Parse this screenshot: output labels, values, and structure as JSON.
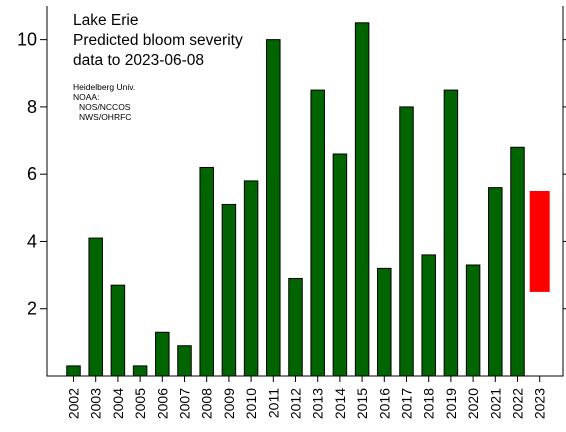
{
  "chart_data": {
    "type": "bar",
    "title_lines": [
      "Lake Erie",
      "Predicted bloom severity",
      "data to 2023-06-08"
    ],
    "credit_lines": [
      "Heidelberg Univ.",
      "NOAA:",
      "NOS/NCCOS",
      "NWS/OHRFC"
    ],
    "categories": [
      "2002",
      "2003",
      "2004",
      "2005",
      "2006",
      "2007",
      "2008",
      "2009",
      "2010",
      "2011",
      "2012",
      "2013",
      "2014",
      "2015",
      "2016",
      "2017",
      "2018",
      "2019",
      "2020",
      "2021",
      "2022",
      "2023"
    ],
    "series": [
      {
        "values": [
          0.3,
          4.1,
          2.7,
          0.3,
          1.3,
          0.9,
          6.2,
          5.1,
          5.8,
          10.0,
          2.9,
          8.5,
          6.6,
          10.5,
          3.2,
          8.0,
          3.6,
          8.5,
          3.3,
          5.6,
          6.8,
          null
        ],
        "color": "#006400"
      }
    ],
    "forecast": {
      "category": "2023",
      "low": 2.5,
      "high": 5.5,
      "color": "#ff0000"
    },
    "yticks": [
      2,
      4,
      6,
      8,
      10
    ],
    "ylim": [
      0,
      11
    ],
    "grid": false
  }
}
